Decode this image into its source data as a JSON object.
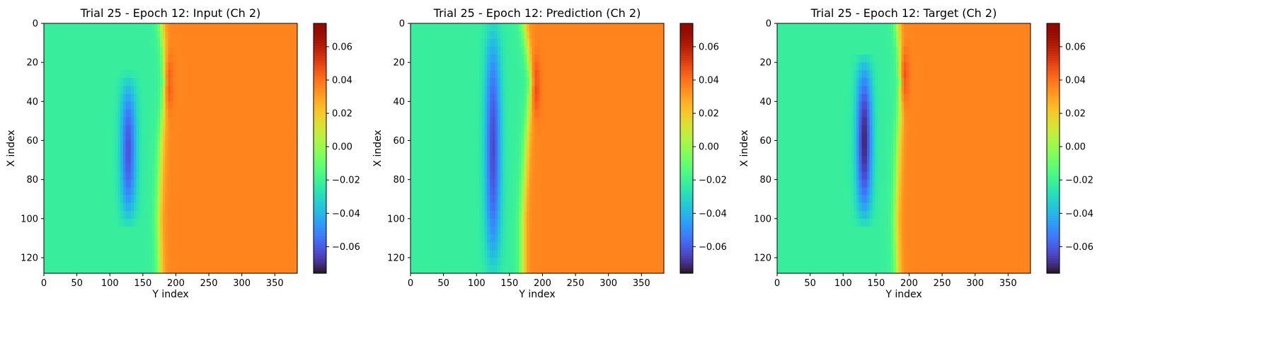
{
  "chart_data": [
    {
      "type": "heatmap",
      "title": "Trial 25 - Epoch 12: Input (Ch 2)",
      "xlabel": "Y index",
      "ylabel": "X index",
      "xlim": [
        0,
        384
      ],
      "ylim": [
        128,
        0
      ],
      "xticks": [
        0,
        50,
        100,
        150,
        200,
        250,
        300,
        350
      ],
      "yticks": [
        0,
        20,
        40,
        60,
        80,
        100,
        120
      ],
      "colormap": "turbo",
      "colorbar": {
        "min": -0.076,
        "max": 0.074,
        "ticks": [
          0.06,
          0.04,
          0.02,
          0.0,
          -0.02,
          -0.04,
          -0.06
        ],
        "tick_labels": [
          "0.06",
          "0.04",
          "0.02",
          "0.00",
          "−0.02",
          "−0.04",
          "−0.06"
        ]
      },
      "field": {
        "left_value": -0.022,
        "right_value": 0.036,
        "front_x": [
          [
            0,
            178
          ],
          [
            20,
            184
          ],
          [
            30,
            186
          ],
          [
            60,
            178
          ],
          [
            100,
            174
          ],
          [
            128,
            176
          ]
        ],
        "blue_band": {
          "center_y": 128,
          "x_range": [
            30,
            100
          ],
          "min_value": -0.062
        },
        "hot_spot": {
          "x": 30,
          "y": 186,
          "value": 0.062
        }
      }
    },
    {
      "type": "heatmap",
      "title": "Trial 25 - Epoch 12: Prediction (Ch 2)",
      "xlabel": "Y index",
      "ylabel": "X index",
      "xlim": [
        0,
        384
      ],
      "ylim": [
        128,
        0
      ],
      "xticks": [
        0,
        50,
        100,
        150,
        200,
        250,
        300,
        350
      ],
      "yticks": [
        0,
        20,
        40,
        60,
        80,
        100,
        120
      ],
      "colormap": "turbo",
      "colorbar": {
        "min": -0.076,
        "max": 0.074,
        "ticks": [
          0.06,
          0.04,
          0.02,
          0.0,
          -0.02,
          -0.04,
          -0.06
        ],
        "tick_labels": [
          "0.06",
          "0.04",
          "0.02",
          "0.00",
          "−0.02",
          "−0.04",
          "−0.06"
        ]
      },
      "field": {
        "left_value": -0.022,
        "right_value": 0.036,
        "front_x": [
          [
            0,
            172
          ],
          [
            20,
            180
          ],
          [
            30,
            184
          ],
          [
            60,
            176
          ],
          [
            100,
            170
          ],
          [
            128,
            170
          ]
        ],
        "blue_band": {
          "center_y": 125,
          "x_range": [
            0,
            128
          ],
          "min_value": -0.064
        },
        "hot_spot": {
          "x": 32,
          "y": 188,
          "value": 0.055
        }
      }
    },
    {
      "type": "heatmap",
      "title": "Trial 25 - Epoch 12: Target (Ch 2)",
      "xlabel": "Y index",
      "ylabel": "X index",
      "xlim": [
        0,
        384
      ],
      "ylim": [
        128,
        0
      ],
      "xticks": [
        0,
        50,
        100,
        150,
        200,
        250,
        300,
        350
      ],
      "yticks": [
        0,
        20,
        40,
        60,
        80,
        100,
        120
      ],
      "colormap": "turbo",
      "colorbar": {
        "min": -0.076,
        "max": 0.074,
        "ticks": [
          0.06,
          0.04,
          0.02,
          0.0,
          -0.02,
          -0.04,
          -0.06
        ],
        "tick_labels": [
          "0.06",
          "0.04",
          "0.02",
          "0.00",
          "−0.02",
          "−0.04",
          "−0.06"
        ]
      },
      "field": {
        "left_value": -0.022,
        "right_value": 0.036,
        "front_x": [
          [
            0,
            182
          ],
          [
            20,
            188
          ],
          [
            30,
            190
          ],
          [
            60,
            184
          ],
          [
            100,
            180
          ],
          [
            128,
            182
          ]
        ],
        "blue_band": {
          "center_y": 132,
          "x_range": [
            20,
            100
          ],
          "min_value": -0.072
        },
        "hot_spot": {
          "x": 28,
          "y": 190,
          "value": 0.064
        }
      }
    }
  ]
}
